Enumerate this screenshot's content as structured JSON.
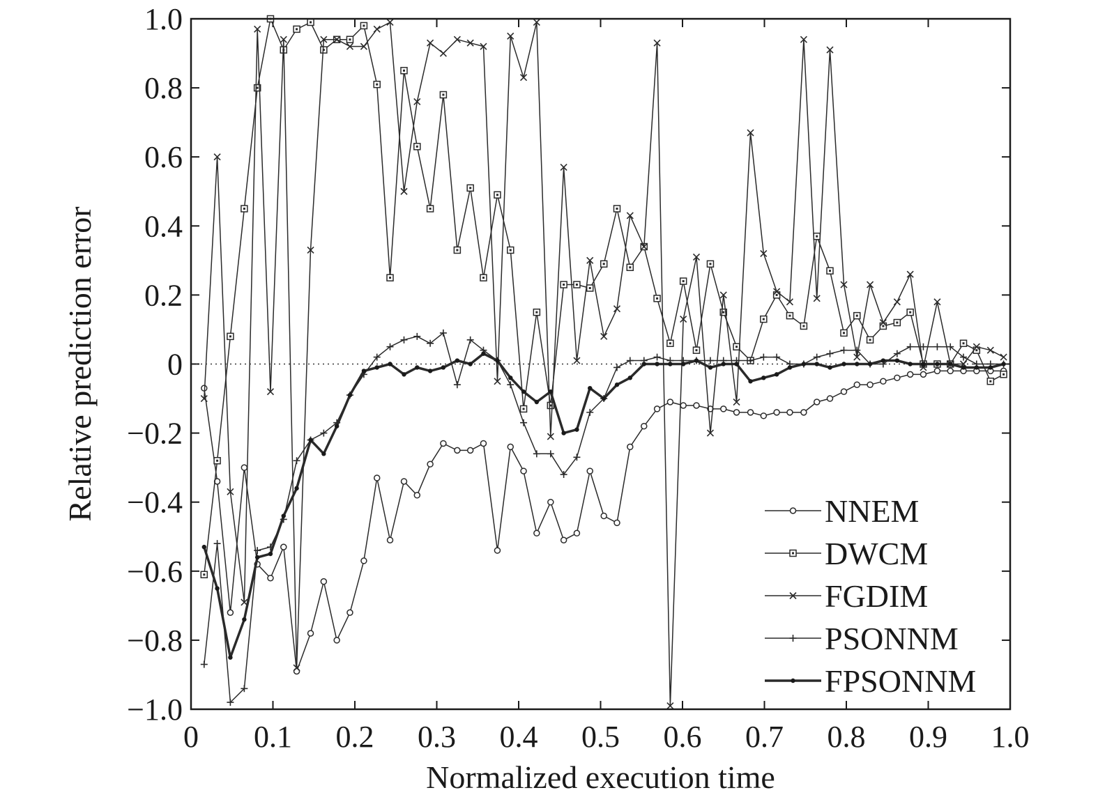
{
  "chart_data": {
    "type": "line",
    "xlabel": "Normalized execution time",
    "ylabel": "Relative prediction error",
    "xlim": [
      0,
      1.0
    ],
    "ylim": [
      -1.0,
      1.0
    ],
    "xticks": [
      "0",
      "0.1",
      "0.2",
      "0.3",
      "0.4",
      "0.5",
      "0.6",
      "0.7",
      "0.8",
      "0.9",
      "1.0"
    ],
    "yticks": [
      "1.0",
      "0.8",
      "0.6",
      "0.4",
      "0.2",
      "0",
      "−0.2",
      "−0.4",
      "−0.6",
      "−0.8",
      "−1.0"
    ],
    "legend_position": "bottom-right",
    "reference_line": {
      "y": 0,
      "style": "dotted"
    },
    "series": [
      {
        "name": "NNEM",
        "marker": "circle",
        "width": 1.5,
        "points": [
          [
            0.016,
            -0.07
          ],
          [
            0.032,
            -0.34
          ],
          [
            0.048,
            -0.72
          ],
          [
            0.065,
            -0.3
          ],
          [
            0.081,
            -0.58
          ],
          [
            0.097,
            -0.62
          ],
          [
            0.113,
            -0.53
          ],
          [
            0.129,
            -0.89
          ],
          [
            0.146,
            -0.78
          ],
          [
            0.162,
            -0.63
          ],
          [
            0.178,
            -0.8
          ],
          [
            0.194,
            -0.72
          ],
          [
            0.211,
            -0.57
          ],
          [
            0.227,
            -0.33
          ],
          [
            0.243,
            -0.51
          ],
          [
            0.26,
            -0.34
          ],
          [
            0.276,
            -0.38
          ],
          [
            0.292,
            -0.29
          ],
          [
            0.308,
            -0.23
          ],
          [
            0.325,
            -0.25
          ],
          [
            0.341,
            -0.25
          ],
          [
            0.357,
            -0.23
          ],
          [
            0.374,
            -0.54
          ],
          [
            0.39,
            -0.24
          ],
          [
            0.406,
            -0.31
          ],
          [
            0.422,
            -0.49
          ],
          [
            0.439,
            -0.4
          ],
          [
            0.455,
            -0.51
          ],
          [
            0.471,
            -0.49
          ],
          [
            0.487,
            -0.31
          ],
          [
            0.504,
            -0.44
          ],
          [
            0.52,
            -0.46
          ],
          [
            0.536,
            -0.24
          ],
          [
            0.553,
            -0.18
          ],
          [
            0.569,
            -0.13
          ],
          [
            0.585,
            -0.11
          ],
          [
            0.601,
            -0.12
          ],
          [
            0.617,
            -0.12
          ],
          [
            0.634,
            -0.13
          ],
          [
            0.65,
            -0.13
          ],
          [
            0.666,
            -0.14
          ],
          [
            0.683,
            -0.14
          ],
          [
            0.699,
            -0.15
          ],
          [
            0.715,
            -0.14
          ],
          [
            0.731,
            -0.14
          ],
          [
            0.748,
            -0.14
          ],
          [
            0.764,
            -0.11
          ],
          [
            0.78,
            -0.1
          ],
          [
            0.797,
            -0.08
          ],
          [
            0.813,
            -0.06
          ],
          [
            0.829,
            -0.06
          ],
          [
            0.845,
            -0.05
          ],
          [
            0.862,
            -0.04
          ],
          [
            0.878,
            -0.03
          ],
          [
            0.894,
            -0.03
          ],
          [
            0.911,
            -0.02
          ],
          [
            0.927,
            -0.02
          ],
          [
            0.943,
            -0.02
          ],
          [
            0.959,
            -0.02
          ],
          [
            0.976,
            -0.02
          ],
          [
            0.992,
            -0.02
          ]
        ]
      },
      {
        "name": "DWCM",
        "marker": "square",
        "width": 1.5,
        "points": [
          [
            0.016,
            -0.61
          ],
          [
            0.032,
            -0.28
          ],
          [
            0.048,
            0.08
          ],
          [
            0.065,
            0.45
          ],
          [
            0.081,
            0.8
          ],
          [
            0.097,
            1.0
          ],
          [
            0.113,
            0.91
          ],
          [
            0.129,
            0.97
          ],
          [
            0.146,
            0.99
          ],
          [
            0.162,
            0.91
          ],
          [
            0.178,
            0.94
          ],
          [
            0.194,
            0.94
          ],
          [
            0.211,
            0.98
          ],
          [
            0.227,
            0.81
          ],
          [
            0.243,
            0.25
          ],
          [
            0.26,
            0.85
          ],
          [
            0.276,
            0.63
          ],
          [
            0.292,
            0.45
          ],
          [
            0.308,
            0.78
          ],
          [
            0.325,
            0.33
          ],
          [
            0.341,
            0.51
          ],
          [
            0.357,
            0.25
          ],
          [
            0.374,
            0.49
          ],
          [
            0.39,
            0.33
          ],
          [
            0.406,
            -0.13
          ],
          [
            0.422,
            0.15
          ],
          [
            0.439,
            -0.12
          ],
          [
            0.455,
            0.23
          ],
          [
            0.471,
            0.23
          ],
          [
            0.487,
            0.22
          ],
          [
            0.504,
            0.29
          ],
          [
            0.52,
            0.45
          ],
          [
            0.536,
            0.28
          ],
          [
            0.553,
            0.34
          ],
          [
            0.569,
            0.19
          ],
          [
            0.585,
            0.06
          ],
          [
            0.601,
            0.24
          ],
          [
            0.617,
            0.04
          ],
          [
            0.634,
            0.29
          ],
          [
            0.65,
            0.15
          ],
          [
            0.666,
            0.05
          ],
          [
            0.683,
            0.01
          ],
          [
            0.699,
            0.13
          ],
          [
            0.715,
            0.2
          ],
          [
            0.731,
            0.14
          ],
          [
            0.748,
            0.11
          ],
          [
            0.764,
            0.37
          ],
          [
            0.78,
            0.27
          ],
          [
            0.797,
            0.09
          ],
          [
            0.813,
            0.14
          ],
          [
            0.829,
            0.07
          ],
          [
            0.845,
            0.11
          ],
          [
            0.862,
            0.12
          ],
          [
            0.878,
            0.15
          ],
          [
            0.894,
            0.0
          ],
          [
            0.911,
            0.0
          ],
          [
            0.927,
            0.0
          ],
          [
            0.943,
            0.06
          ],
          [
            0.959,
            0.04
          ],
          [
            0.976,
            -0.05
          ],
          [
            0.992,
            -0.03
          ]
        ]
      },
      {
        "name": "FGDIM",
        "marker": "x",
        "width": 1.5,
        "points": [
          [
            0.016,
            -0.1
          ],
          [
            0.032,
            0.6
          ],
          [
            0.048,
            -0.37
          ],
          [
            0.065,
            -0.69
          ],
          [
            0.081,
            0.97
          ],
          [
            0.097,
            -0.08
          ],
          [
            0.113,
            0.94
          ],
          [
            0.129,
            -0.88
          ],
          [
            0.146,
            0.33
          ],
          [
            0.162,
            0.94
          ],
          [
            0.178,
            0.94
          ],
          [
            0.194,
            0.92
          ],
          [
            0.211,
            0.92
          ],
          [
            0.227,
            0.97
          ],
          [
            0.243,
            0.99
          ],
          [
            0.26,
            0.5
          ],
          [
            0.276,
            0.76
          ],
          [
            0.292,
            0.93
          ],
          [
            0.308,
            0.9
          ],
          [
            0.325,
            0.94
          ],
          [
            0.341,
            0.93
          ],
          [
            0.357,
            0.92
          ],
          [
            0.374,
            -0.05
          ],
          [
            0.39,
            0.95
          ],
          [
            0.406,
            0.83
          ],
          [
            0.422,
            0.99
          ],
          [
            0.439,
            -0.21
          ],
          [
            0.455,
            0.57
          ],
          [
            0.471,
            0.01
          ],
          [
            0.487,
            0.3
          ],
          [
            0.504,
            0.08
          ],
          [
            0.52,
            0.16
          ],
          [
            0.536,
            0.43
          ],
          [
            0.553,
            0.34
          ],
          [
            0.569,
            0.93
          ],
          [
            0.585,
            -0.99
          ],
          [
            0.601,
            0.13
          ],
          [
            0.617,
            0.31
          ],
          [
            0.634,
            -0.2
          ],
          [
            0.65,
            0.2
          ],
          [
            0.666,
            -0.11
          ],
          [
            0.683,
            0.67
          ],
          [
            0.699,
            0.32
          ],
          [
            0.715,
            0.21
          ],
          [
            0.731,
            0.18
          ],
          [
            0.748,
            0.94
          ],
          [
            0.764,
            0.19
          ],
          [
            0.78,
            0.91
          ],
          [
            0.797,
            0.23
          ],
          [
            0.813,
            0.02
          ],
          [
            0.829,
            0.23
          ],
          [
            0.845,
            0.12
          ],
          [
            0.862,
            0.18
          ],
          [
            0.878,
            0.26
          ],
          [
            0.894,
            -0.01
          ],
          [
            0.911,
            0.18
          ],
          [
            0.927,
            0.0
          ],
          [
            0.943,
            0.0
          ],
          [
            0.959,
            0.05
          ],
          [
            0.976,
            0.04
          ],
          [
            0.992,
            0.02
          ]
        ]
      },
      {
        "name": "PSONNM",
        "marker": "plus",
        "width": 1.5,
        "points": [
          [
            0.016,
            -0.87
          ],
          [
            0.032,
            -0.52
          ],
          [
            0.048,
            -0.98
          ],
          [
            0.065,
            -0.94
          ],
          [
            0.081,
            -0.54
          ],
          [
            0.097,
            -0.53
          ],
          [
            0.113,
            -0.45
          ],
          [
            0.129,
            -0.28
          ],
          [
            0.146,
            -0.22
          ],
          [
            0.162,
            -0.2
          ],
          [
            0.178,
            -0.17
          ],
          [
            0.194,
            -0.09
          ],
          [
            0.211,
            -0.03
          ],
          [
            0.227,
            0.02
          ],
          [
            0.243,
            0.05
          ],
          [
            0.26,
            0.07
          ],
          [
            0.276,
            0.08
          ],
          [
            0.292,
            0.06
          ],
          [
            0.308,
            0.09
          ],
          [
            0.325,
            -0.06
          ],
          [
            0.341,
            0.07
          ],
          [
            0.357,
            0.04
          ],
          [
            0.374,
            0.01
          ],
          [
            0.39,
            -0.06
          ],
          [
            0.406,
            -0.17
          ],
          [
            0.422,
            -0.26
          ],
          [
            0.439,
            -0.26
          ],
          [
            0.455,
            -0.32
          ],
          [
            0.471,
            -0.27
          ],
          [
            0.487,
            -0.14
          ],
          [
            0.504,
            -0.1
          ],
          [
            0.52,
            -0.01
          ],
          [
            0.536,
            0.01
          ],
          [
            0.553,
            0.01
          ],
          [
            0.569,
            0.02
          ],
          [
            0.585,
            0.01
          ],
          [
            0.601,
            0.01
          ],
          [
            0.617,
            0.01
          ],
          [
            0.634,
            0.01
          ],
          [
            0.65,
            0.01
          ],
          [
            0.666,
            0.01
          ],
          [
            0.683,
            0.01
          ],
          [
            0.699,
            0.02
          ],
          [
            0.715,
            0.02
          ],
          [
            0.731,
            0.0
          ],
          [
            0.748,
            0.0
          ],
          [
            0.764,
            0.02
          ],
          [
            0.78,
            0.03
          ],
          [
            0.797,
            0.04
          ],
          [
            0.813,
            0.04
          ],
          [
            0.829,
            0.0
          ],
          [
            0.845,
            0.0
          ],
          [
            0.862,
            0.03
          ],
          [
            0.878,
            0.05
          ],
          [
            0.894,
            0.05
          ],
          [
            0.911,
            0.05
          ],
          [
            0.927,
            0.05
          ],
          [
            0.943,
            0.02
          ],
          [
            0.959,
            0.0
          ],
          [
            0.976,
            0.0
          ],
          [
            0.992,
            0.0
          ]
        ]
      },
      {
        "name": "FPSONNM",
        "marker": "dot",
        "width": 3.5,
        "points": [
          [
            0.016,
            -0.53
          ],
          [
            0.032,
            -0.65
          ],
          [
            0.048,
            -0.85
          ],
          [
            0.065,
            -0.74
          ],
          [
            0.081,
            -0.56
          ],
          [
            0.097,
            -0.55
          ],
          [
            0.113,
            -0.44
          ],
          [
            0.129,
            -0.36
          ],
          [
            0.146,
            -0.22
          ],
          [
            0.162,
            -0.26
          ],
          [
            0.178,
            -0.18
          ],
          [
            0.194,
            -0.09
          ],
          [
            0.211,
            -0.02
          ],
          [
            0.227,
            -0.01
          ],
          [
            0.243,
            0.0
          ],
          [
            0.26,
            -0.03
          ],
          [
            0.276,
            -0.01
          ],
          [
            0.292,
            -0.02
          ],
          [
            0.308,
            -0.01
          ],
          [
            0.325,
            0.01
          ],
          [
            0.341,
            0.0
          ],
          [
            0.357,
            0.03
          ],
          [
            0.374,
            0.01
          ],
          [
            0.39,
            -0.04
          ],
          [
            0.406,
            -0.08
          ],
          [
            0.422,
            -0.11
          ],
          [
            0.439,
            -0.08
          ],
          [
            0.455,
            -0.2
          ],
          [
            0.471,
            -0.19
          ],
          [
            0.487,
            -0.07
          ],
          [
            0.504,
            -0.1
          ],
          [
            0.52,
            -0.06
          ],
          [
            0.536,
            -0.04
          ],
          [
            0.553,
            0.0
          ],
          [
            0.569,
            0.0
          ],
          [
            0.585,
            0.0
          ],
          [
            0.601,
            0.0
          ],
          [
            0.617,
            0.01
          ],
          [
            0.634,
            -0.01
          ],
          [
            0.65,
            0.0
          ],
          [
            0.666,
            0.0
          ],
          [
            0.683,
            -0.05
          ],
          [
            0.699,
            -0.04
          ],
          [
            0.715,
            -0.03
          ],
          [
            0.731,
            -0.01
          ],
          [
            0.748,
            0.0
          ],
          [
            0.764,
            0.0
          ],
          [
            0.78,
            -0.01
          ],
          [
            0.797,
            0.0
          ],
          [
            0.813,
            0.0
          ],
          [
            0.829,
            0.0
          ],
          [
            0.845,
            0.01
          ],
          [
            0.862,
            0.01
          ],
          [
            0.878,
            0.0
          ],
          [
            0.894,
            0.0
          ],
          [
            0.911,
            0.0
          ],
          [
            0.927,
            0.0
          ],
          [
            0.943,
            -0.01
          ],
          [
            0.959,
            -0.01
          ],
          [
            0.976,
            -0.01
          ],
          [
            0.992,
            0.0
          ]
        ]
      }
    ]
  }
}
